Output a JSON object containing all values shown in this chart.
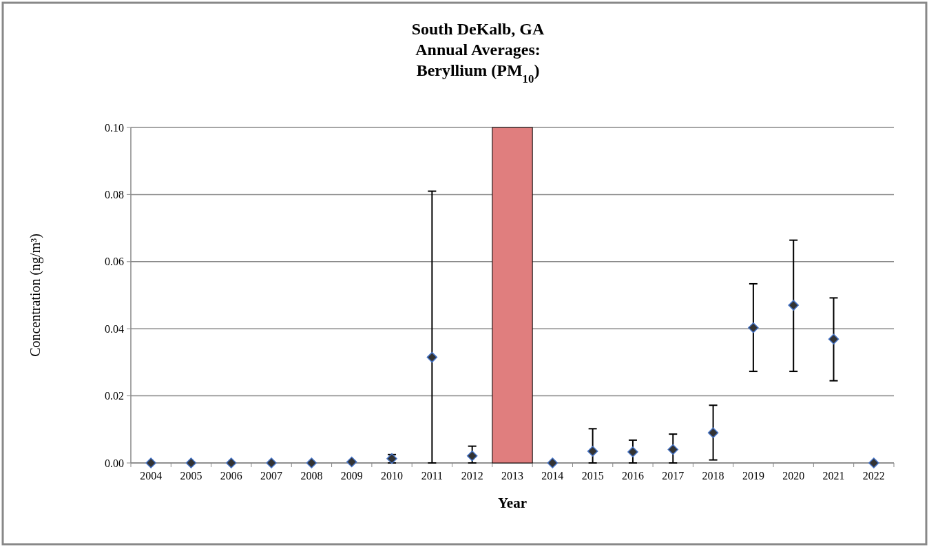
{
  "chart_data": {
    "type": "scatter",
    "title": "South DeKalb, GA\nAnnual Averages:\nBeryllium (PM$_{10}$)",
    "xlabel": "Year",
    "ylabel": "Concentration (ng/m³)",
    "categories": [
      "2004",
      "2005",
      "2006",
      "2007",
      "2008",
      "2009",
      "2010",
      "2011",
      "2012",
      "2013",
      "2014",
      "2015",
      "2016",
      "2017",
      "2018",
      "2019",
      "2020",
      "2021",
      "2022"
    ],
    "series": [
      {
        "type": "bar",
        "color": "#e07e7e",
        "values": [
          null,
          null,
          null,
          null,
          null,
          null,
          null,
          null,
          null,
          0.1,
          null,
          null,
          null,
          null,
          null,
          null,
          null,
          null,
          null
        ]
      },
      {
        "color": "#333333",
        "marker": "diamond",
        "values": [
          0,
          0,
          0,
          0,
          0,
          0.0003,
          0.0013,
          0.0315,
          0.0021,
          null,
          0,
          0.0035,
          0.0033,
          0.004,
          0.009,
          0.0403,
          0.047,
          0.0369,
          0
        ],
        "errors": [
          null,
          null,
          null,
          null,
          null,
          null,
          [
            0,
            0.0025
          ],
          [
            0,
            0.081
          ],
          [
            0,
            0.005
          ],
          null,
          null,
          [
            0,
            0.0102
          ],
          [
            0,
            0.0068
          ],
          [
            0,
            0.0086
          ],
          [
            0.0009,
            0.0172
          ],
          [
            0.0273,
            0.0534
          ],
          [
            0.0273,
            0.0664
          ],
          [
            0.0245,
            0.0492
          ],
          null
        ]
      }
    ],
    "ylim": [
      0,
      0.1
    ],
    "yticks": [
      {
        "value": 0,
        "label": "0.00"
      },
      {
        "value": 0.02,
        "label": "0.02"
      },
      {
        "value": 0.04,
        "label": "0.04"
      },
      {
        "value": 0.06,
        "label": "0.06"
      },
      {
        "value": 0.08,
        "label": "0.08"
      },
      {
        "value": 0.1,
        "label": "0.10"
      }
    ],
    "grid": "y"
  }
}
